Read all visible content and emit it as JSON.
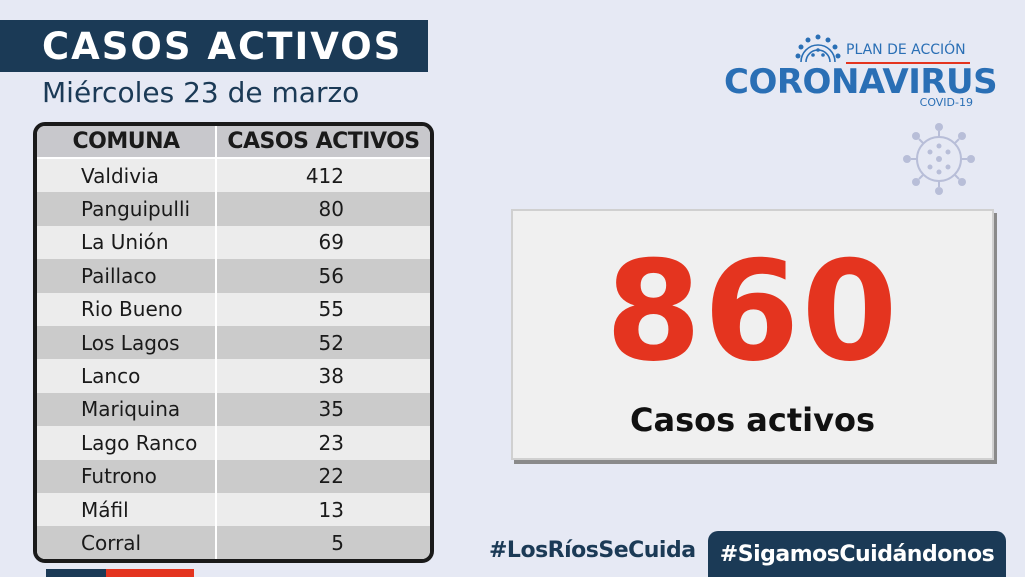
{
  "header": {
    "title": "CASOS ACTIVOS",
    "date": "Miércoles 23 de marzo"
  },
  "table": {
    "columns": [
      "COMUNA",
      "CASOS ACTIVOS"
    ],
    "rows": [
      {
        "comuna": "Valdivia",
        "casos": "412"
      },
      {
        "comuna": "Panguipulli",
        "casos": "80"
      },
      {
        "comuna": "La Unión",
        "casos": "69"
      },
      {
        "comuna": "Paillaco",
        "casos": "56"
      },
      {
        "comuna": "Rio Bueno",
        "casos": "55"
      },
      {
        "comuna": "Los Lagos",
        "casos": "52"
      },
      {
        "comuna": "Lanco",
        "casos": "38"
      },
      {
        "comuna": "Mariquina",
        "casos": "35"
      },
      {
        "comuna": "Lago Ranco",
        "casos": "23"
      },
      {
        "comuna": "Futrono",
        "casos": "22"
      },
      {
        "comuna": "Máfil",
        "casos": "13"
      },
      {
        "comuna": "Corral",
        "casos": "5"
      }
    ]
  },
  "logo": {
    "plan": "PLAN DE ACCIÓN",
    "name": "CORONAVIRUS",
    "covid": "COVID-19"
  },
  "summary": {
    "total": "860",
    "label": "Casos activos"
  },
  "hashtags": {
    "primary": "#LosRíosSeCuida",
    "secondary": "#SigamosCuidándonos"
  },
  "colors": {
    "navy": "#1b3a56",
    "accent_red": "#e4341f",
    "logo_blue": "#2a6fb5",
    "background": "#e6e9f4"
  },
  "icons": [
    "virus-icon-small",
    "virus-icon-large"
  ]
}
